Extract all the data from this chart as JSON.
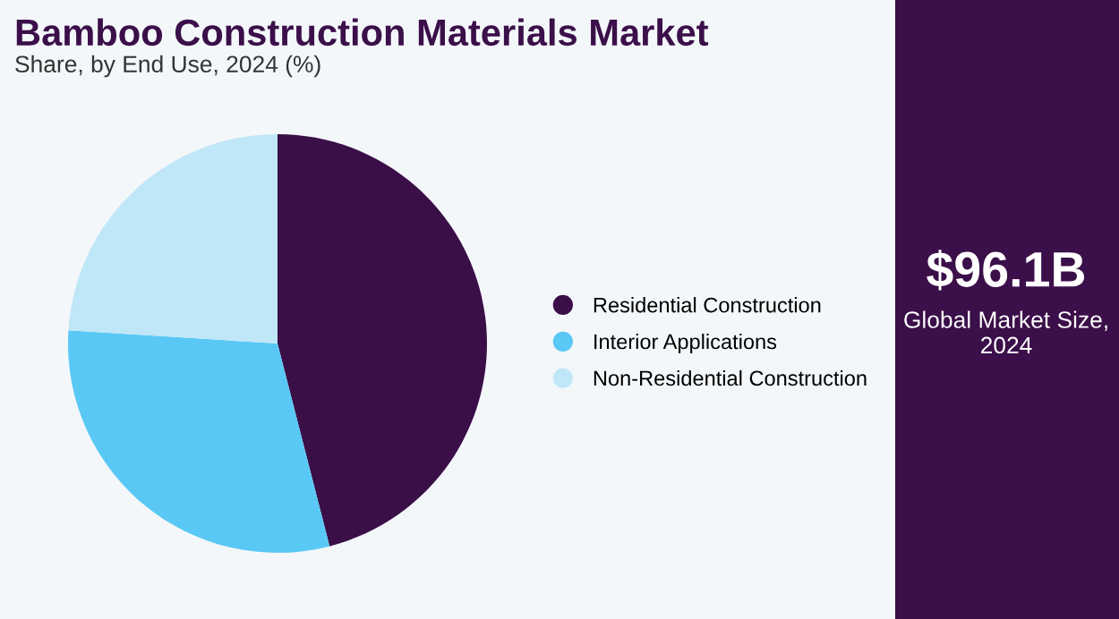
{
  "chart_data": {
    "type": "pie",
    "title": "Bamboo Construction Materials Market",
    "subtitle": "Share, by End Use, 2024 (%)",
    "categories": [
      "Residential Construction",
      "Interior Applications",
      "Non-Residential Construction"
    ],
    "values": [
      46,
      30,
      24
    ],
    "colors": [
      "#3a0f48",
      "#5ac8f5",
      "#bfe7f8"
    ],
    "legend": "right",
    "annotations": [
      "$96.1B",
      "Global Market Size, 2024"
    ]
  }
}
